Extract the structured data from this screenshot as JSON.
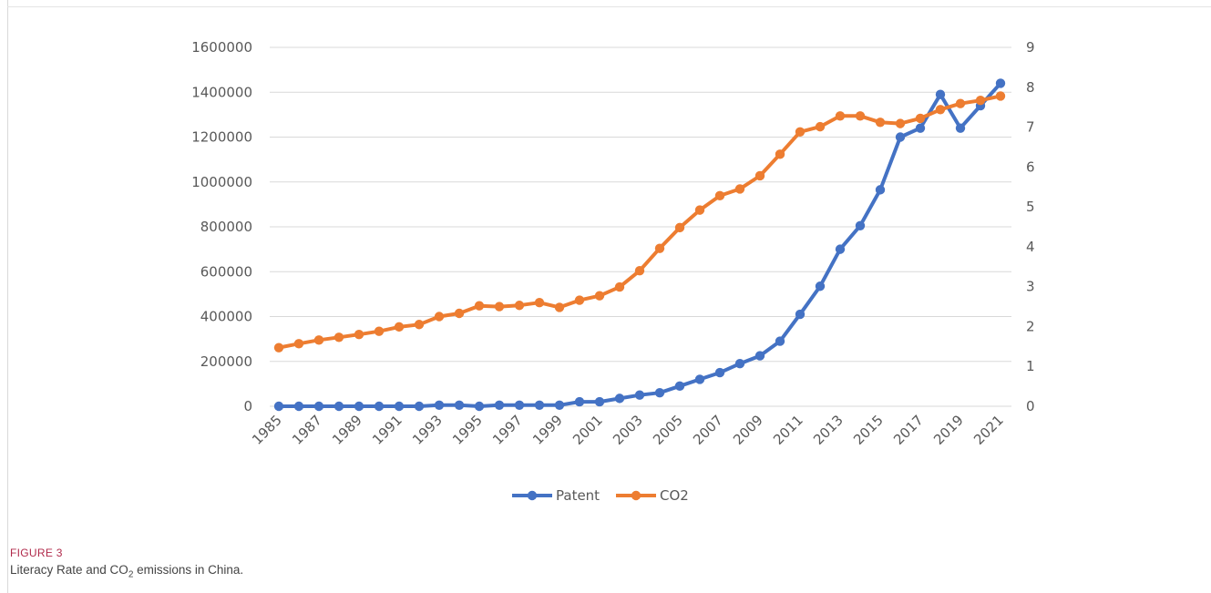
{
  "figure": {
    "label": "FIGURE 3",
    "caption_prefix": "Literacy Rate and CO",
    "caption_subscript": "2",
    "caption_suffix": " emissions in China."
  },
  "chart_data": {
    "type": "line",
    "x": [
      1985,
      1986,
      1987,
      1988,
      1989,
      1990,
      1991,
      1992,
      1993,
      1994,
      1995,
      1996,
      1997,
      1998,
      1999,
      2000,
      2001,
      2002,
      2003,
      2004,
      2005,
      2006,
      2007,
      2008,
      2009,
      2010,
      2011,
      2012,
      2013,
      2014,
      2015,
      2016,
      2017,
      2018,
      2019,
      2020,
      2021
    ],
    "x_tick_labels": [
      "1985",
      "1987",
      "1989",
      "1991",
      "1993",
      "1995",
      "1997",
      "1999",
      "2001",
      "2003",
      "2005",
      "2007",
      "2009",
      "2011",
      "2013",
      "2015",
      "2017",
      "2019",
      "2021"
    ],
    "series": [
      {
        "name": "Patent",
        "axis": "left",
        "color": "#4472c4",
        "values": [
          0,
          0,
          0,
          0,
          0,
          0,
          0,
          0,
          5000,
          5000,
          0,
          5000,
          5000,
          5000,
          5000,
          20000,
          20000,
          35000,
          50000,
          60000,
          90000,
          120000,
          150000,
          190000,
          225000,
          290000,
          410000,
          535000,
          700000,
          805000,
          965000,
          1200000,
          1240000,
          1390000,
          1240000,
          1340000,
          1440000
        ]
      },
      {
        "name": "CO2",
        "axis": "right",
        "color": "#ed7d31",
        "values": [
          1.47,
          1.57,
          1.66,
          1.73,
          1.8,
          1.88,
          1.99,
          2.05,
          2.25,
          2.33,
          2.52,
          2.5,
          2.53,
          2.6,
          2.48,
          2.66,
          2.77,
          2.99,
          3.4,
          3.96,
          4.48,
          4.92,
          5.28,
          5.45,
          5.78,
          6.32,
          6.88,
          7.01,
          7.28,
          7.28,
          7.12,
          7.09,
          7.22,
          7.44,
          7.59,
          7.67,
          7.78
        ]
      }
    ],
    "left_axis": {
      "min": 0,
      "max": 1600000,
      "step": 200000,
      "tick_labels": [
        "0",
        "200000",
        "400000",
        "600000",
        "800000",
        "1000000",
        "1200000",
        "1400000",
        "1600000"
      ]
    },
    "right_axis": {
      "min": 0,
      "max": 9,
      "step": 1,
      "tick_labels": [
        "0",
        "1",
        "2",
        "3",
        "4",
        "5",
        "6",
        "7",
        "8",
        "9"
      ]
    },
    "grid": true,
    "legend_position": "bottom-center",
    "legend": [
      "Patent",
      "CO2"
    ],
    "gridline_color": "#d9d9d9",
    "title": "",
    "xlabel": "",
    "ylabel": ""
  }
}
